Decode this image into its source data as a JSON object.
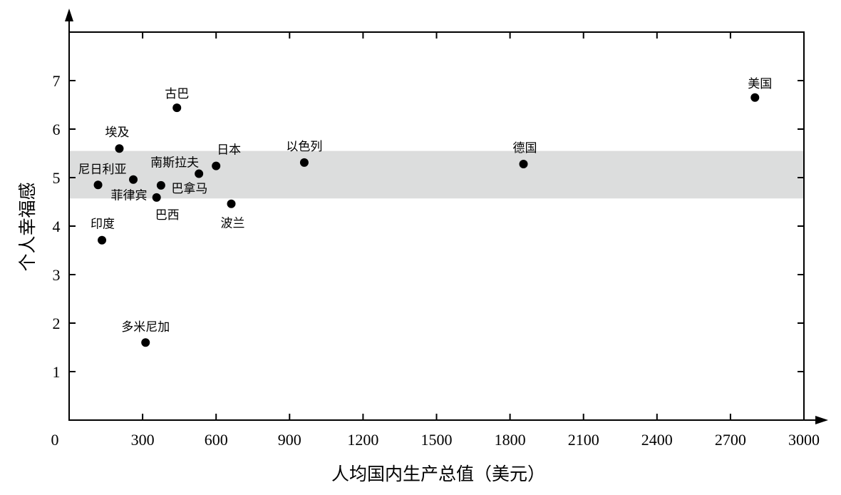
{
  "chart_data": {
    "type": "scatter",
    "title": "",
    "xlabel": "人均国内生产总值（美元）",
    "ylabel": "个人幸福感",
    "xlim": [
      0,
      3000
    ],
    "ylim": [
      0,
      8
    ],
    "xticks": [
      0,
      300,
      600,
      900,
      1200,
      1500,
      1800,
      2100,
      2400,
      2700,
      3000
    ],
    "yticks": [
      1,
      2,
      3,
      4,
      5,
      6,
      7
    ],
    "band": {
      "y_from": 4.57,
      "y_to": 5.55,
      "color": "#dcdddd"
    },
    "grid": false,
    "legend": "none",
    "point_color": "#000000",
    "points": [
      {
        "label": "美国",
        "x": 2800,
        "y": 6.65
      },
      {
        "label": "古巴",
        "x": 440,
        "y": 6.44
      },
      {
        "label": "埃及",
        "x": 205,
        "y": 5.6
      },
      {
        "label": "以色列",
        "x": 960,
        "y": 5.31
      },
      {
        "label": "德国",
        "x": 1855,
        "y": 5.28
      },
      {
        "label": "日本",
        "x": 600,
        "y": 5.24
      },
      {
        "label": "南斯拉夫",
        "x": 530,
        "y": 5.08
      },
      {
        "label": "菲律宾",
        "x": 262,
        "y": 4.96
      },
      {
        "label": "尼日利亚",
        "x": 118,
        "y": 4.85
      },
      {
        "label": "巴拿马",
        "x": 375,
        "y": 4.84
      },
      {
        "label": "巴西",
        "x": 357,
        "y": 4.59
      },
      {
        "label": "波兰",
        "x": 662,
        "y": 4.46
      },
      {
        "label": "印度",
        "x": 134,
        "y": 3.71
      },
      {
        "label": "多米尼加",
        "x": 312,
        "y": 1.6
      }
    ]
  }
}
